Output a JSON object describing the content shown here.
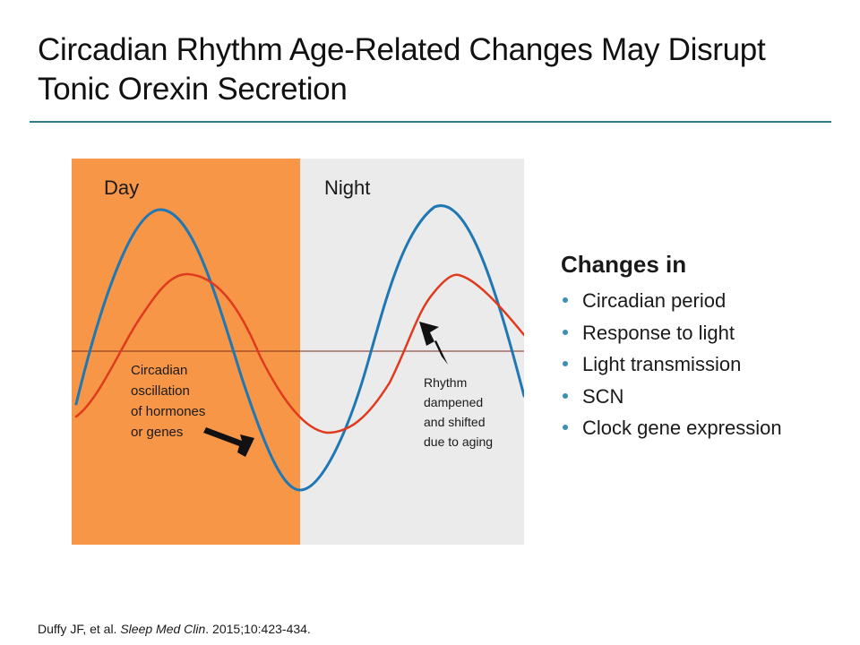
{
  "title": "Circadian Rhythm Age-Related Changes May Disrupt Tonic Orexin Secretion",
  "diagram": {
    "day_label": "Day",
    "night_label": "Night",
    "annotation_left": [
      "Circadian",
      "oscillation",
      "of hormones",
      "or genes"
    ],
    "annotation_right": [
      "Rhythm",
      "dampened",
      "and shifted",
      "due to aging"
    ],
    "colors": {
      "day_panel": "#f79646",
      "night_panel": "#ebebeb",
      "baseline": "#7f2a1a",
      "normal_rhythm": "#1f77b4",
      "aged_rhythm": "#e03a1e",
      "arrow": "#111111"
    }
  },
  "changes": {
    "heading": "Changes in",
    "items": [
      "Circadian period",
      "Response to light",
      "Light transmission",
      "SCN",
      "Clock gene expression"
    ],
    "bullet_color": "#3a8fb2"
  },
  "citation": {
    "authors": "Duffy JF, et al. ",
    "journal": "Sleep Med Clin",
    "details": ". 2015;10:423-434."
  }
}
